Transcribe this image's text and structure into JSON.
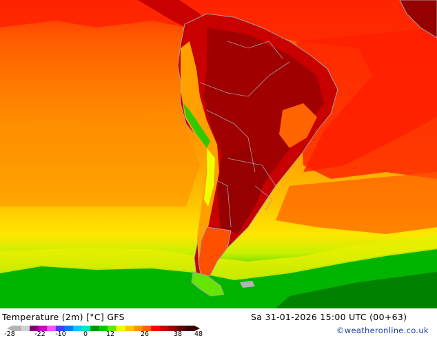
{
  "map": {
    "title": "Temperature (2m) [°C] GFS",
    "timestamp": "Sa 31-01-2026 15:00 UTC (00+63)",
    "credit": "©weatheronline.co.uk"
  },
  "legend": {
    "ticks": [
      "-28",
      "-22",
      "-10",
      "0",
      "12",
      "26",
      "38",
      "48"
    ],
    "colors": [
      "#b4b4b4",
      "#d2d2d2",
      "#7a007a",
      "#c800c8",
      "#ff50ff",
      "#4040ff",
      "#0078ff",
      "#00c8ff",
      "#00e6c8",
      "#009600",
      "#00c800",
      "#64e600",
      "#f0ff00",
      "#ffc800",
      "#ff9600",
      "#ff6400",
      "#ff0000",
      "#c80000",
      "#960000",
      "#640000",
      "#3c0000"
    ]
  },
  "colors": {
    "ocean_warm": "#ff7800",
    "ocean_mid": "#ffa000",
    "ocean_cool": "#ffd200",
    "cold": "#00c800",
    "hot": "#e60000",
    "very_hot": "#a00000",
    "land_border": "#a0a0a0"
  }
}
